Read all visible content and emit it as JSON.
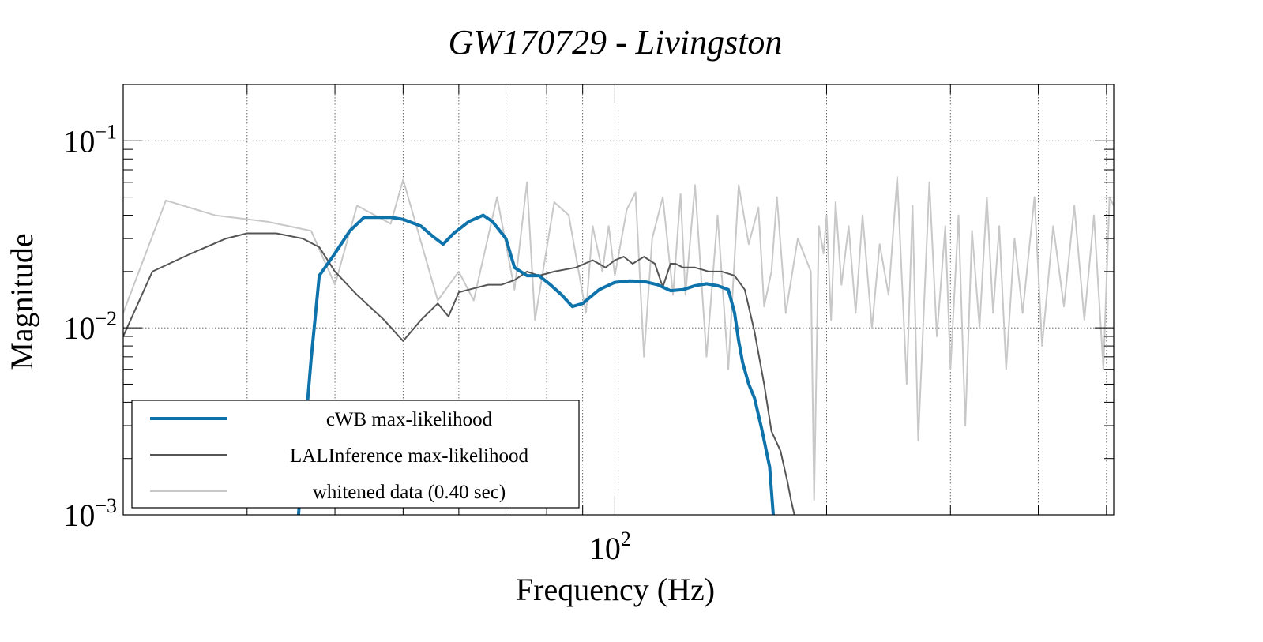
{
  "chart_data": {
    "type": "line",
    "title": "GW170729 - Livingston",
    "xlabel": "Frequency (Hz)",
    "ylabel": "Magnitude",
    "x_scale": "log",
    "y_scale": "log",
    "xlim": [
      20,
      512
    ],
    "ylim": [
      0.001,
      0.2
    ],
    "grid": true,
    "legend_position": "bottom-left",
    "x_major_ticks": [
      {
        "value": 100,
        "base": "10",
        "exp": "2"
      }
    ],
    "x_minor_gridlines": [
      30,
      40,
      50,
      60,
      70,
      80,
      90,
      200,
      300,
      400,
      500
    ],
    "y_major_ticks": [
      {
        "value": 0.001,
        "base": "10",
        "exp": "−3"
      },
      {
        "value": 0.01,
        "base": "10",
        "exp": "−2"
      },
      {
        "value": 0.1,
        "base": "10",
        "exp": "−1"
      }
    ],
    "series": [
      {
        "name": "whitened data (0.40 sec)",
        "color": "#c8c8c8",
        "width": 2,
        "x": [
          20,
          23,
          27,
          32,
          37,
          40,
          43,
          48,
          50,
          56,
          60,
          63,
          68,
          72,
          75,
          77,
          82,
          86,
          91,
          93,
          96,
          98,
          100,
          104,
          107,
          110,
          113,
          117,
          121,
          124,
          126,
          130,
          135,
          140,
          145,
          150,
          155,
          160,
          163,
          167,
          170,
          175,
          182,
          190,
          192,
          195,
          198,
          200,
          203,
          206,
          210,
          215,
          220,
          225,
          232,
          238,
          245,
          252,
          260,
          265,
          270,
          280,
          287,
          295,
          300,
          308,
          315,
          322,
          330,
          338,
          345,
          352,
          360,
          370,
          380,
          395,
          405,
          420,
          435,
          450,
          465,
          480,
          495,
          505,
          512
        ],
        "y": [
          0.012,
          0.048,
          0.04,
          0.037,
          0.033,
          0.017,
          0.045,
          0.036,
          0.062,
          0.014,
          0.02,
          0.014,
          0.05,
          0.016,
          0.06,
          0.011,
          0.047,
          0.04,
          0.012,
          0.035,
          0.02,
          0.035,
          0.019,
          0.043,
          0.053,
          0.007,
          0.03,
          0.05,
          0.015,
          0.052,
          0.015,
          0.058,
          0.007,
          0.04,
          0.006,
          0.058,
          0.028,
          0.044,
          0.013,
          0.02,
          0.05,
          0.012,
          0.03,
          0.02,
          0.0012,
          0.035,
          0.025,
          0.04,
          0.011,
          0.047,
          0.017,
          0.035,
          0.012,
          0.04,
          0.01,
          0.028,
          0.015,
          0.064,
          0.005,
          0.045,
          0.0025,
          0.06,
          0.009,
          0.035,
          0.006,
          0.04,
          0.003,
          0.033,
          0.01,
          0.05,
          0.012,
          0.035,
          0.006,
          0.03,
          0.012,
          0.05,
          0.008,
          0.035,
          0.013,
          0.045,
          0.011,
          0.04,
          0.006,
          0.05,
          0.045
        ]
      },
      {
        "name": "LALInference max-likelihood",
        "color": "#555555",
        "width": 2,
        "x": [
          20,
          22,
          25,
          28,
          30,
          33,
          36,
          38,
          40,
          43,
          47,
          50,
          53,
          56,
          58,
          60,
          62,
          66,
          69,
          72,
          75,
          78,
          82,
          88,
          93,
          97,
          100,
          103,
          106,
          110,
          114,
          117,
          120,
          122,
          125,
          130,
          136,
          142,
          148,
          153,
          158,
          163,
          167,
          172,
          176,
          178,
          180
        ],
        "y": [
          0.009,
          0.02,
          0.025,
          0.03,
          0.032,
          0.032,
          0.03,
          0.027,
          0.02,
          0.015,
          0.011,
          0.0085,
          0.011,
          0.0135,
          0.0115,
          0.0155,
          0.016,
          0.017,
          0.017,
          0.018,
          0.02,
          0.019,
          0.02,
          0.021,
          0.023,
          0.021,
          0.023,
          0.024,
          0.022,
          0.024,
          0.022,
          0.0165,
          0.022,
          0.022,
          0.021,
          0.021,
          0.02,
          0.02,
          0.019,
          0.016,
          0.0095,
          0.005,
          0.0028,
          0.0022,
          0.0015,
          0.0012,
          0.001
        ]
      },
      {
        "name": "cWB max-likelihood",
        "color": "#0e72ab",
        "width": 4,
        "x": [
          35.5,
          36,
          37,
          38,
          40,
          42,
          44,
          46,
          48,
          50,
          53,
          55,
          57,
          59,
          62,
          64,
          65,
          67,
          70,
          72,
          75,
          78,
          81,
          84,
          87,
          90,
          95,
          100,
          105,
          110,
          115,
          120,
          125,
          130,
          135,
          140,
          145,
          148,
          150,
          152,
          155,
          158,
          162,
          166,
          168
        ],
        "y": [
          0.001,
          0.002,
          0.0068,
          0.019,
          0.025,
          0.033,
          0.039,
          0.039,
          0.039,
          0.038,
          0.035,
          0.031,
          0.028,
          0.032,
          0.037,
          0.039,
          0.04,
          0.037,
          0.03,
          0.021,
          0.019,
          0.019,
          0.017,
          0.015,
          0.013,
          0.0135,
          0.016,
          0.0175,
          0.0178,
          0.0177,
          0.017,
          0.0158,
          0.016,
          0.0168,
          0.0172,
          0.0168,
          0.016,
          0.012,
          0.0085,
          0.0065,
          0.005,
          0.0042,
          0.0028,
          0.0018,
          0.001
        ]
      }
    ]
  }
}
